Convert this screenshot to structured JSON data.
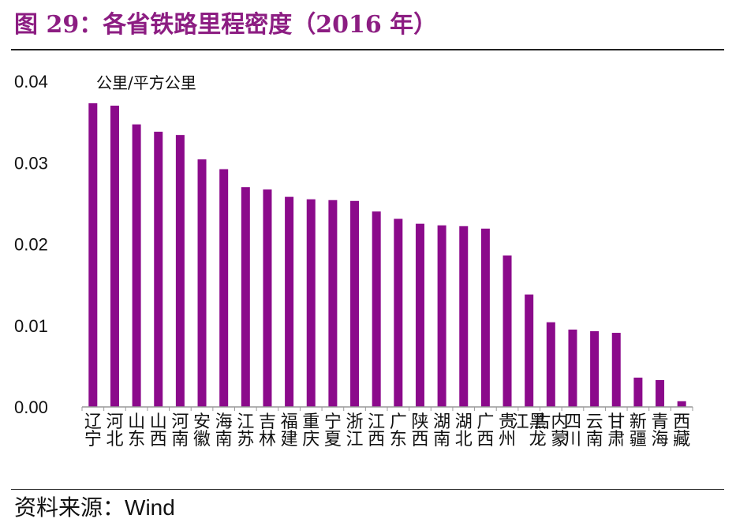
{
  "figure": {
    "title": "图 29：各省铁路里程密度（2016 年）",
    "source_label": "资料来源：",
    "source_value": "Wind"
  },
  "chart_data": {
    "type": "bar",
    "title": "",
    "xlabel": "",
    "ylabel": "公里/平方公里",
    "ylim": [
      0,
      0.04
    ],
    "yticks": [
      "0.00",
      "0.01",
      "0.02",
      "0.03",
      "0.04"
    ],
    "grid": false,
    "bar_color": "#8b0a8b",
    "categories": [
      "辽宁",
      "河北",
      "山东",
      "山西",
      "河南",
      "安徽",
      "海南",
      "江苏",
      "吉林",
      "福建",
      "重庆",
      "宁夏",
      "浙江",
      "江西",
      "广东",
      "陕西",
      "湖南",
      "湖北",
      "广西",
      "贵州",
      "黑龙江",
      "内蒙古",
      "四川",
      "云南",
      "甘肃",
      "新疆",
      "青海",
      "西藏"
    ],
    "values": [
      0.0373,
      0.037,
      0.0347,
      0.0338,
      0.0334,
      0.0304,
      0.0292,
      0.027,
      0.0267,
      0.0258,
      0.0255,
      0.0254,
      0.0253,
      0.024,
      0.0231,
      0.0225,
      0.0223,
      0.0222,
      0.0219,
      0.0186,
      0.0138,
      0.0104,
      0.0095,
      0.0093,
      0.0091,
      0.0036,
      0.0033,
      0.0007
    ]
  }
}
